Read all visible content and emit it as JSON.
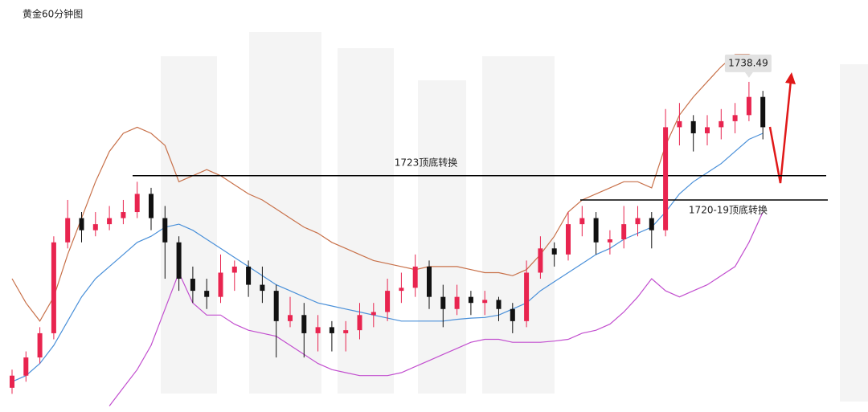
{
  "chart_data": {
    "type": "candlestick",
    "title": "黄金60分钟图",
    "ylim": [
      1684,
      1752
    ],
    "up_color": "#e8244f",
    "down_color": "#111111",
    "candles": [
      [
        1688,
        1691,
        1687,
        1690
      ],
      [
        1690,
        1694,
        1689,
        1693
      ],
      [
        1693,
        1698,
        1692,
        1697
      ],
      [
        1697,
        1713,
        1696,
        1712
      ],
      [
        1712,
        1719,
        1711,
        1716
      ],
      [
        1716,
        1717,
        1712,
        1714
      ],
      [
        1714,
        1717,
        1713,
        1715
      ],
      [
        1715,
        1718,
        1714,
        1716
      ],
      [
        1716,
        1719,
        1715,
        1717
      ],
      [
        1717,
        1722,
        1716,
        1720
      ],
      [
        1720,
        1721,
        1714,
        1716
      ],
      [
        1716,
        1718,
        1706,
        1712
      ],
      [
        1712,
        1713,
        1704,
        1706
      ],
      [
        1706,
        1708,
        1702,
        1704
      ],
      [
        1704,
        1706,
        1701,
        1703
      ],
      [
        1703,
        1710,
        1702,
        1707
      ],
      [
        1707,
        1709,
        1704,
        1708
      ],
      [
        1708,
        1709,
        1703,
        1705
      ],
      [
        1705,
        1708,
        1702,
        1704
      ],
      [
        1704,
        1705,
        1693,
        1699
      ],
      [
        1699,
        1703,
        1698,
        1700
      ],
      [
        1700,
        1702,
        1693,
        1697
      ],
      [
        1697,
        1700,
        1694,
        1698
      ],
      [
        1698,
        1699,
        1694,
        1697
      ],
      [
        1697,
        1699,
        1694,
        1697.5
      ],
      [
        1697.5,
        1702,
        1696,
        1700
      ],
      [
        1700,
        1702,
        1698,
        1700.5
      ],
      [
        1700.5,
        1706,
        1699,
        1704
      ],
      [
        1704,
        1707,
        1702,
        1704.5
      ],
      [
        1704.5,
        1710,
        1703,
        1708
      ],
      [
        1708,
        1709,
        1701,
        1703
      ],
      [
        1703,
        1705,
        1698,
        1701
      ],
      [
        1701,
        1705,
        1700,
        1703
      ],
      [
        1703,
        1704,
        1700,
        1702
      ],
      [
        1702,
        1704,
        1700,
        1702.5
      ],
      [
        1702.5,
        1703,
        1699,
        1701
      ],
      [
        1701,
        1702,
        1697,
        1699
      ],
      [
        1699,
        1709,
        1698,
        1707
      ],
      [
        1707,
        1713,
        1706,
        1711
      ],
      [
        1711,
        1712,
        1708,
        1710
      ],
      [
        1710,
        1717,
        1709,
        1715
      ],
      [
        1715,
        1718,
        1713,
        1716
      ],
      [
        1716,
        1717,
        1710,
        1712
      ],
      [
        1712,
        1714,
        1710,
        1712.5
      ],
      [
        1712.5,
        1718,
        1711,
        1715
      ],
      [
        1715,
        1718,
        1713,
        1716
      ],
      [
        1716,
        1717,
        1711,
        1714
      ],
      [
        1714,
        1734,
        1713,
        1731
      ],
      [
        1731,
        1735,
        1728,
        1732
      ],
      [
        1732,
        1733,
        1727,
        1730
      ],
      [
        1730,
        1733,
        1728,
        1731
      ],
      [
        1731,
        1734,
        1729,
        1732
      ],
      [
        1732,
        1735,
        1730,
        1733
      ],
      [
        1733,
        1738.49,
        1732,
        1736
      ],
      [
        1736,
        1737,
        1729,
        1731
      ]
    ],
    "overlays": [
      {
        "color": "#c8714a",
        "values": [
          1706,
          1702,
          1699,
          1703,
          1710,
          1716,
          1722,
          1727,
          1730,
          1731,
          1730,
          1728,
          1722,
          1723,
          1724,
          1723,
          1721.5,
          1720,
          1719,
          1717.5,
          1716,
          1714.5,
          1713.5,
          1712,
          1711,
          1710,
          1709,
          1708.5,
          1708,
          1707.5,
          1708,
          1708,
          1708,
          1707.5,
          1707,
          1707,
          1706.5,
          1707.5,
          1710,
          1713,
          1717,
          1719,
          1720,
          1721,
          1722,
          1722,
          1721,
          1728,
          1733,
          1736,
          1738.5,
          1741,
          1743,
          1743,
          1742
        ]
      },
      {
        "color": "#4a90d9",
        "values": [
          1689,
          1690,
          1692,
          1695,
          1699,
          1703,
          1706,
          1708,
          1710,
          1712,
          1713,
          1714.5,
          1715,
          1714,
          1712.5,
          1711,
          1709.5,
          1708,
          1706.5,
          1705,
          1704,
          1703,
          1702,
          1701.5,
          1701,
          1700.5,
          1700,
          1699.5,
          1699,
          1699,
          1699,
          1699,
          1699.3,
          1699.5,
          1699.6,
          1700,
          1701,
          1702,
          1704,
          1705.5,
          1707,
          1708.5,
          1710,
          1711,
          1712.5,
          1713.5,
          1714.5,
          1717,
          1720,
          1722,
          1723.5,
          1725,
          1727,
          1729,
          1730
        ]
      },
      {
        "color": "#c24fcf",
        "values": [
          null,
          null,
          null,
          null,
          null,
          null,
          null,
          1685,
          1688,
          1691,
          1695,
          1701,
          1707,
          1702,
          1700,
          1700,
          1698.5,
          1697.5,
          1697,
          1696.5,
          1695,
          1693.5,
          1692,
          1691,
          1690.5,
          1690,
          1690,
          1690,
          1690.5,
          1691.5,
          1692.5,
          1693.5,
          1694.5,
          1695.5,
          1696,
          1696,
          1695.5,
          1695.5,
          1695.5,
          1695.7,
          1696,
          1697,
          1697.5,
          1698.5,
          1700.5,
          1703,
          1706,
          1704,
          1703,
          1704,
          1705,
          1706.5,
          1708,
          1712,
          1717
        ]
      }
    ],
    "levels": [
      {
        "value": 1723,
        "label": "1723顶底转换"
      },
      {
        "value": 1719,
        "label": "1720-19顶底转换"
      }
    ]
  }
}
